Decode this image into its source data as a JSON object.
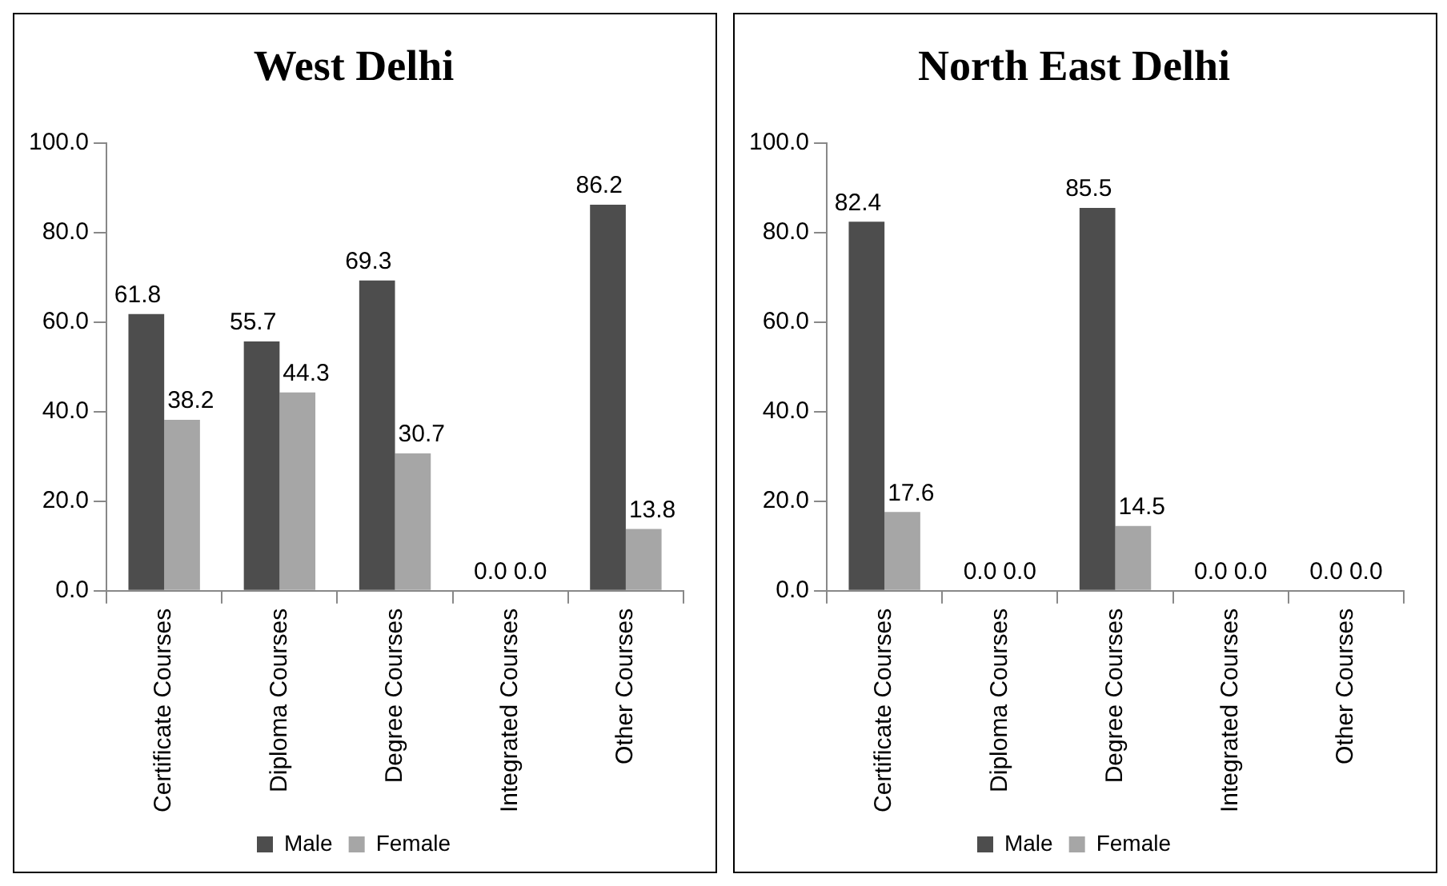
{
  "chart_data": [
    {
      "type": "bar",
      "title": "West Delhi",
      "categories": [
        "Certificate Courses",
        "Diploma Courses",
        "Degree Courses",
        "Integrated Courses",
        "Other Courses"
      ],
      "series": [
        {
          "name": "Male",
          "color": "#4d4d4d",
          "values": [
            61.8,
            55.7,
            69.3,
            0,
            86.2
          ],
          "value_labels": [
            "61.8",
            "55.7",
            "69.3",
            "0.0",
            "86.2"
          ]
        },
        {
          "name": "Female",
          "color": "#a6a6a6",
          "values": [
            38.2,
            44.3,
            30.7,
            0,
            13.8
          ],
          "value_labels": [
            "38.2",
            "44.3",
            "30.7",
            "0.0",
            "13.8"
          ]
        }
      ],
      "ylim": [
        0,
        100
      ],
      "yticks": [
        {
          "value": 0,
          "label": "0.0"
        },
        {
          "value": 20,
          "label": "20.0"
        },
        {
          "value": 40,
          "label": "40.0"
        },
        {
          "value": 60,
          "label": "60.0"
        },
        {
          "value": 80,
          "label": "80.0"
        },
        {
          "value": 100,
          "label": "100.0"
        }
      ],
      "grid": false,
      "legend": "bottom"
    },
    {
      "type": "bar",
      "title": "North East Delhi",
      "categories": [
        "Certificate Courses",
        "Diploma Courses",
        "Degree Courses",
        "Integrated Courses",
        "Other Courses"
      ],
      "series": [
        {
          "name": "Male",
          "color": "#4d4d4d",
          "values": [
            82.4,
            0,
            85.5,
            0,
            0
          ],
          "value_labels": [
            "82.4",
            "0.0",
            "85.5",
            "0.0",
            "0.0"
          ]
        },
        {
          "name": "Female",
          "color": "#a6a6a6",
          "values": [
            17.6,
            0,
            14.5,
            0,
            0
          ],
          "value_labels": [
            "17.6",
            "0.0",
            "14.5",
            "0.0",
            "0.0"
          ]
        }
      ],
      "ylim": [
        0,
        100
      ],
      "yticks": [
        {
          "value": 0,
          "label": "0.0"
        },
        {
          "value": 20,
          "label": "20.0"
        },
        {
          "value": 40,
          "label": "40.0"
        },
        {
          "value": 60,
          "label": "60.0"
        },
        {
          "value": 80,
          "label": "80.0"
        },
        {
          "value": 100,
          "label": "100.0"
        }
      ],
      "grid": false,
      "legend": "bottom"
    }
  ]
}
